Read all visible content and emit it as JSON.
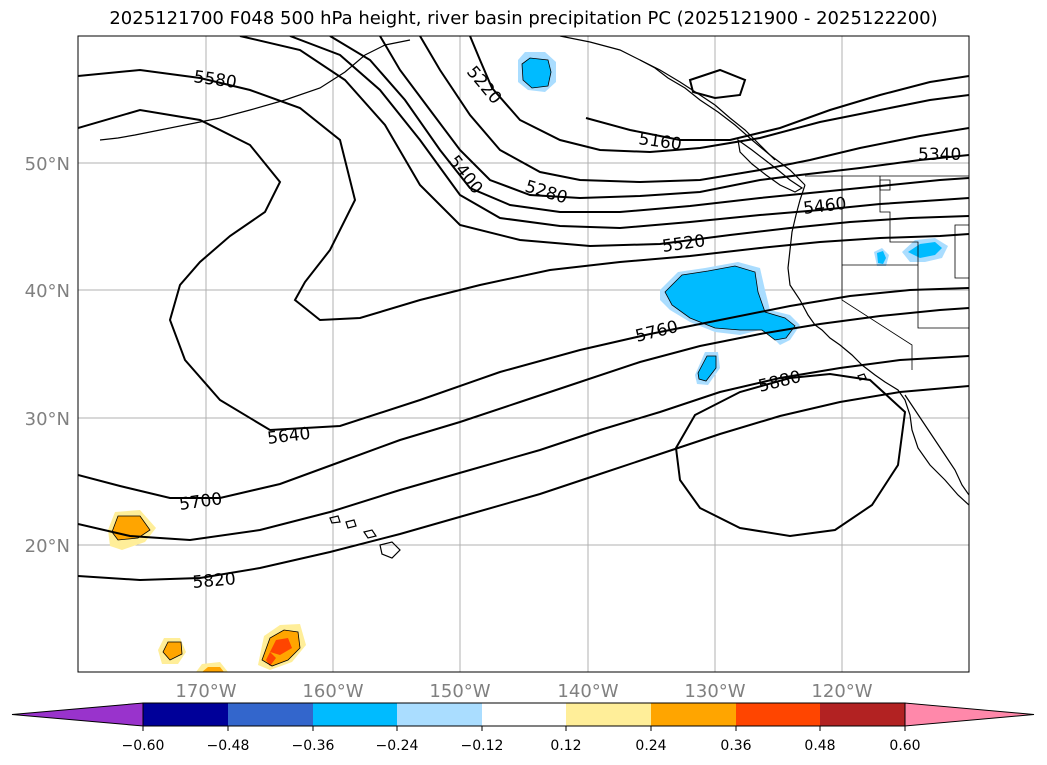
{
  "title": "2025121700 F048 500 hPa height, river basin precipitation PC (2025121900 - 2025122200)",
  "lat_labels": [
    "50°N",
    "40°N",
    "30°N",
    "20°N"
  ],
  "lon_labels": [
    "170°W",
    "160°W",
    "150°W",
    "140°W",
    "130°W",
    "120°W"
  ],
  "contour_labels": [
    "5580",
    "5220",
    "5160",
    "5400",
    "5280",
    "5340",
    "5460",
    "5520",
    "5760",
    "5880",
    "5640",
    "5700",
    "5820"
  ],
  "colorbar": {
    "colors": [
      "#9933cc",
      "#000099",
      "#3366cc",
      "#00bbff",
      "#aaddff",
      "#ffffff",
      "#ffee99",
      "#ffa500",
      "#ff4500",
      "#b22222",
      "#ff88aa"
    ],
    "extend": "both",
    "ticks": [
      "−0.60",
      "−0.48",
      "−0.36",
      "−0.24",
      "−0.12",
      "0.12",
      "0.24",
      "0.36",
      "0.48",
      "0.60"
    ]
  }
}
